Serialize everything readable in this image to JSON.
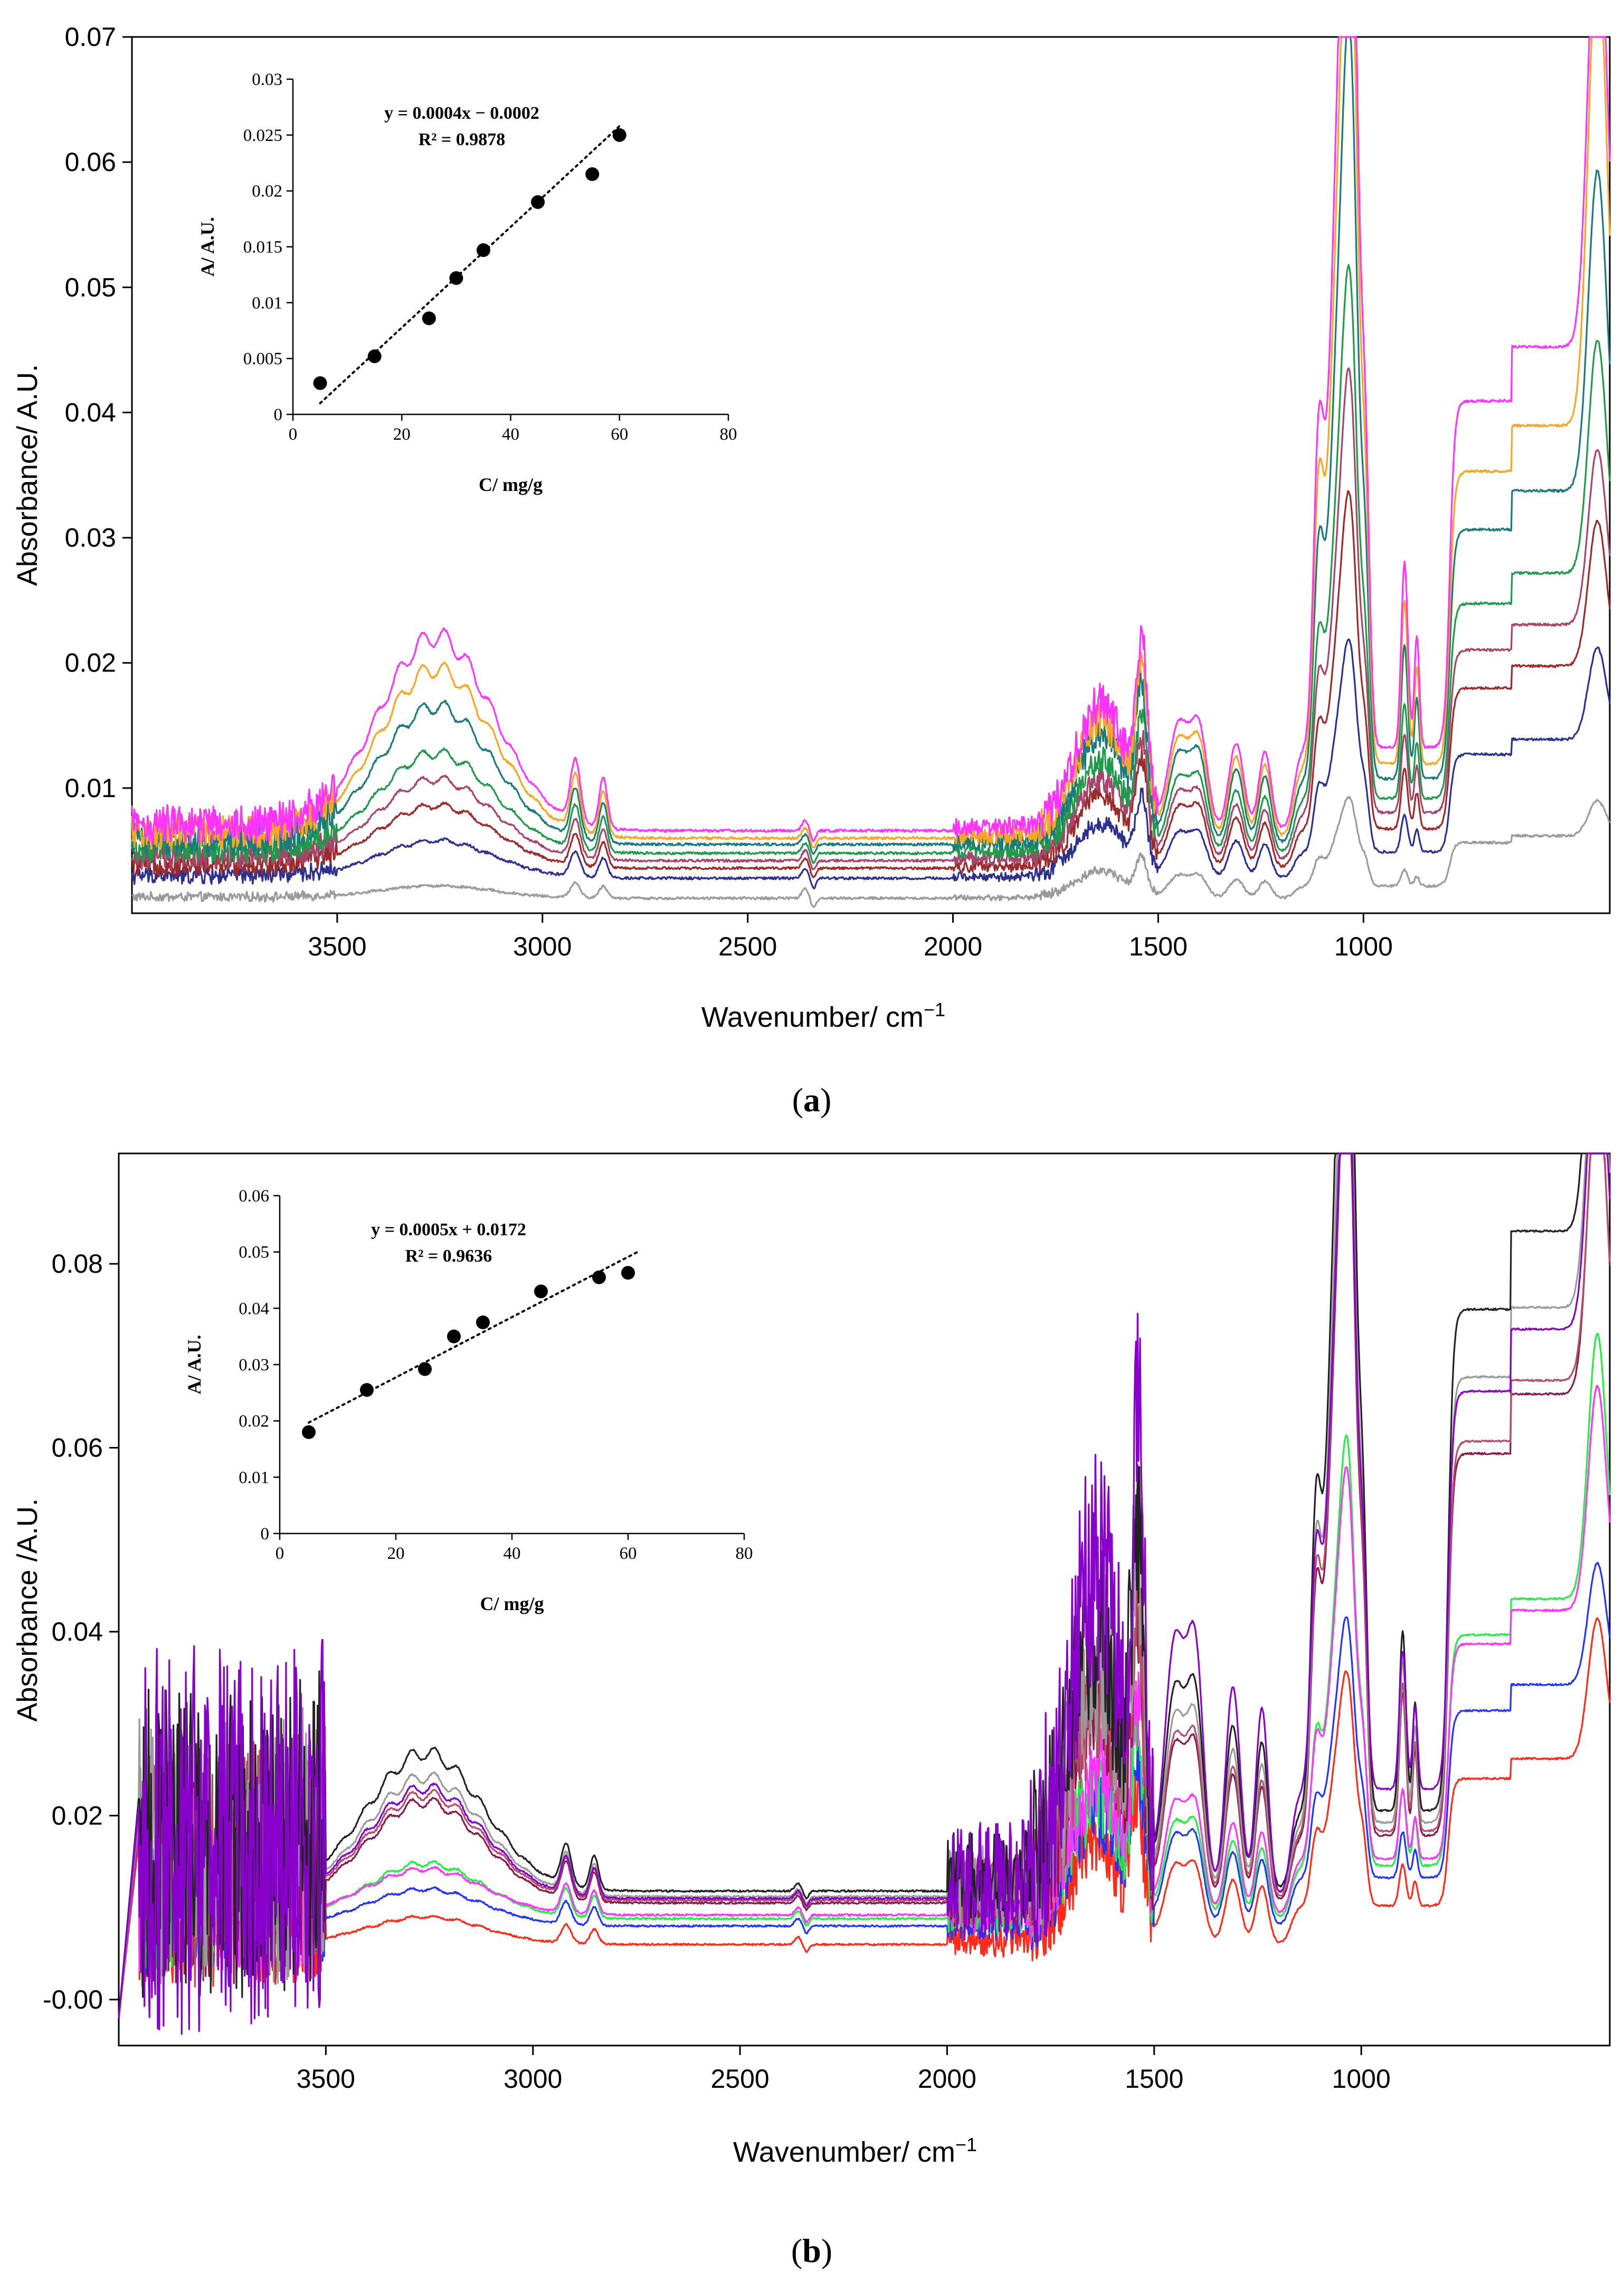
{
  "chart_data": [
    {
      "id": "a",
      "caption_letter": "a",
      "type": "line",
      "xlabel": "Wavenumber/ cm",
      "xlabel_sup": "−1",
      "ylabel": "Absorbance/ A.U.",
      "xlim": [
        4000,
        400
      ],
      "x_reversed": true,
      "ylim": [
        0.0,
        0.07
      ],
      "xticks": [
        3500,
        3000,
        2500,
        2000,
        1500,
        1000
      ],
      "yticks": [
        0.01,
        0.02,
        0.03,
        0.04,
        0.05,
        0.06,
        0.07
      ],
      "grid": false,
      "series": [
        {
          "color": "#9a9a9a",
          "peaks": {
            "base": 0.0012,
            "oh": 0.001,
            "ch": 0.0012,
            "fp1": 0.0028,
            "fp2": 0.005,
            "amide": 0.003,
            "e1": 0.004,
            "e2": 0.006
          }
        },
        {
          "color": "#2b2f8f",
          "peaks": {
            "base": 0.0028,
            "oh": 0.003,
            "ch": 0.002,
            "fp1": 0.006,
            "fp2": 0.012,
            "amide": 0.006,
            "e1": 0.009,
            "e2": 0.0145
          }
        },
        {
          "color": "#9b2a2a",
          "peaks": {
            "base": 0.0036,
            "oh": 0.005,
            "ch": 0.0025,
            "fp1": 0.009,
            "fp2": 0.019,
            "amide": 0.008,
            "e1": 0.013,
            "e2": 0.022
          }
        },
        {
          "color": "#a6446a",
          "peaks": {
            "base": 0.0042,
            "oh": 0.0065,
            "ch": 0.003,
            "fp1": 0.011,
            "fp2": 0.025,
            "amide": 0.009,
            "e1": 0.015,
            "e2": 0.026
          }
        },
        {
          "color": "#1f9a4a",
          "peaks": {
            "base": 0.0048,
            "oh": 0.008,
            "ch": 0.0035,
            "fp1": 0.0125,
            "fp2": 0.03,
            "amide": 0.01,
            "e1": 0.018,
            "e2": 0.033
          }
        },
        {
          "color": "#187a7a",
          "peaks": {
            "base": 0.0055,
            "oh": 0.011,
            "ch": 0.004,
            "fp1": 0.015,
            "fp2": 0.043,
            "amide": 0.012,
            "e1": 0.023,
            "e2": 0.044
          }
        },
        {
          "color": "#f5a623",
          "peaks": {
            "base": 0.006,
            "oh": 0.0135,
            "ch": 0.0045,
            "fp1": 0.017,
            "fp2": 0.052,
            "amide": 0.013,
            "e1": 0.027,
            "e2": 0.06
          }
        },
        {
          "color": "#ff33ff",
          "peaks": {
            "base": 0.0066,
            "oh": 0.0155,
            "ch": 0.005,
            "fp1": 0.019,
            "fp2": 0.059,
            "amide": 0.014,
            "e1": 0.032,
            "e2": 0.063
          }
        }
      ],
      "inset": {
        "type": "scatter",
        "xlabel": "C/ mg/g",
        "ylabel": "A/ A.U.",
        "xlim": [
          0,
          80
        ],
        "ylim": [
          0,
          0.03
        ],
        "xticks": [
          0,
          20,
          40,
          60,
          80
        ],
        "yticks": [
          0,
          0.005,
          0.01,
          0.015,
          0.02,
          0.025,
          0.03
        ],
        "ytick_labels": [
          "0",
          "0.005",
          "0.01",
          "0.015",
          "0.02",
          "0.025",
          "0.03"
        ],
        "points": [
          {
            "x": 5,
            "y": 0.0028
          },
          {
            "x": 15,
            "y": 0.0052
          },
          {
            "x": 25,
            "y": 0.0086
          },
          {
            "x": 30,
            "y": 0.0122
          },
          {
            "x": 35,
            "y": 0.0147
          },
          {
            "x": 45,
            "y": 0.019
          },
          {
            "x": 55,
            "y": 0.0215
          },
          {
            "x": 60,
            "y": 0.025
          }
        ],
        "trendline": {
          "slope": 0.0004,
          "intercept": -0.0002,
          "x_range": [
            5,
            60
          ]
        },
        "equation": "y = 0.0004x − 0.0002",
        "r2": "R² = 0.9878"
      }
    },
    {
      "id": "b",
      "caption_letter": "b",
      "type": "line",
      "xlabel": "Wavenumber/ cm",
      "xlabel_sup": "−1",
      "ylabel": "Absorbance /A.U.",
      "xlim": [
        4000,
        400
      ],
      "x_reversed": true,
      "ylim": [
        -0.005,
        0.092
      ],
      "xticks": [
        3500,
        3000,
        2500,
        2000,
        1500,
        1000
      ],
      "yticks": [
        0.0,
        0.02,
        0.04,
        0.06,
        0.08
      ],
      "ytick_labels": [
        "-0.00",
        "0.02",
        "0.04",
        "0.06",
        "0.08"
      ],
      "grid": false,
      "series": [
        {
          "color": "#ff2a1a",
          "peaks": {
            "base": 0.006,
            "oh": 0.003,
            "ch": 0.002,
            "fp1": 0.012,
            "fp2": 0.018,
            "amide": 0.014,
            "e1": 0.016,
            "e2": 0.028
          }
        },
        {
          "color": "#2233ff",
          "peaks": {
            "base": 0.008,
            "oh": 0.004,
            "ch": 0.0025,
            "fp1": 0.015,
            "fp2": 0.02,
            "amide": 0.016,
            "e1": 0.021,
            "e2": 0.03
          }
        },
        {
          "color": "#22ee44",
          "peaks": {
            "base": 0.0088,
            "oh": 0.006,
            "ch": 0.003,
            "fp1": 0.0165,
            "fp2": 0.033,
            "amide": 0.017,
            "e1": 0.029,
            "e2": 0.052
          }
        },
        {
          "color": "#ff33ff",
          "peaks": {
            "base": 0.0092,
            "oh": 0.005,
            "ch": 0.0032,
            "fp1": 0.0175,
            "fp2": 0.03,
            "amide": 0.02,
            "e1": 0.027,
            "e2": 0.046
          }
        },
        {
          "color": "#8a1a4a",
          "peaks": {
            "base": 0.0105,
            "oh": 0.011,
            "ch": 0.004,
            "fp1": 0.021,
            "fp2": 0.062,
            "amide": 0.028,
            "e1": 0.048,
            "e2": 0.074
          }
        },
        {
          "color": "#b5506a",
          "peaks": {
            "base": 0.0108,
            "oh": 0.0115,
            "ch": 0.004,
            "fp1": 0.0215,
            "fp2": 0.064,
            "amide": 0.029,
            "e1": 0.049,
            "e2": 0.072
          }
        },
        {
          "color": "#9a9a9a",
          "peaks": {
            "base": 0.0112,
            "oh": 0.013,
            "ch": 0.0042,
            "fp1": 0.023,
            "fp2": 0.07,
            "amide": 0.032,
            "e1": 0.056,
            "e2": 0.082
          }
        },
        {
          "color": "#222222",
          "peaks": {
            "base": 0.0118,
            "oh": 0.015,
            "ch": 0.0045,
            "fp1": 0.025,
            "fp2": 0.078,
            "amide": 0.036,
            "e1": 0.063,
            "e2": 0.09
          }
        },
        {
          "color": "#8800cc",
          "peaks": {
            "base": 0.011,
            "oh": 0.012,
            "ch": 0.004,
            "fp1": 0.034,
            "fp2": 0.06,
            "amide": 0.046,
            "e1": 0.05,
            "e2": 0.076
          }
        }
      ],
      "inset": {
        "type": "scatter",
        "xlabel": "C/ mg/g",
        "ylabel": "A/ A.U.",
        "xlim": [
          0,
          80
        ],
        "ylim": [
          0,
          0.06
        ],
        "xticks": [
          0,
          20,
          40,
          60,
          80
        ],
        "yticks": [
          0,
          0.01,
          0.02,
          0.03,
          0.04,
          0.05,
          0.06
        ],
        "ytick_labels": [
          "0",
          "0.01",
          "0.02",
          "0.03",
          "0.04",
          "0.05",
          "0.06"
        ],
        "points": [
          {
            "x": 5,
            "y": 0.018
          },
          {
            "x": 15,
            "y": 0.0255
          },
          {
            "x": 25,
            "y": 0.0292
          },
          {
            "x": 30,
            "y": 0.035
          },
          {
            "x": 35,
            "y": 0.0375
          },
          {
            "x": 45,
            "y": 0.043
          },
          {
            "x": 55,
            "y": 0.0455
          },
          {
            "x": 60,
            "y": 0.0463
          }
        ],
        "trendline": {
          "slope": 0.0005,
          "intercept": 0.0172,
          "x_range": [
            5,
            62
          ]
        },
        "equation": "y = 0.0005x + 0.0172",
        "r2": "R² = 0.9636"
      }
    }
  ]
}
